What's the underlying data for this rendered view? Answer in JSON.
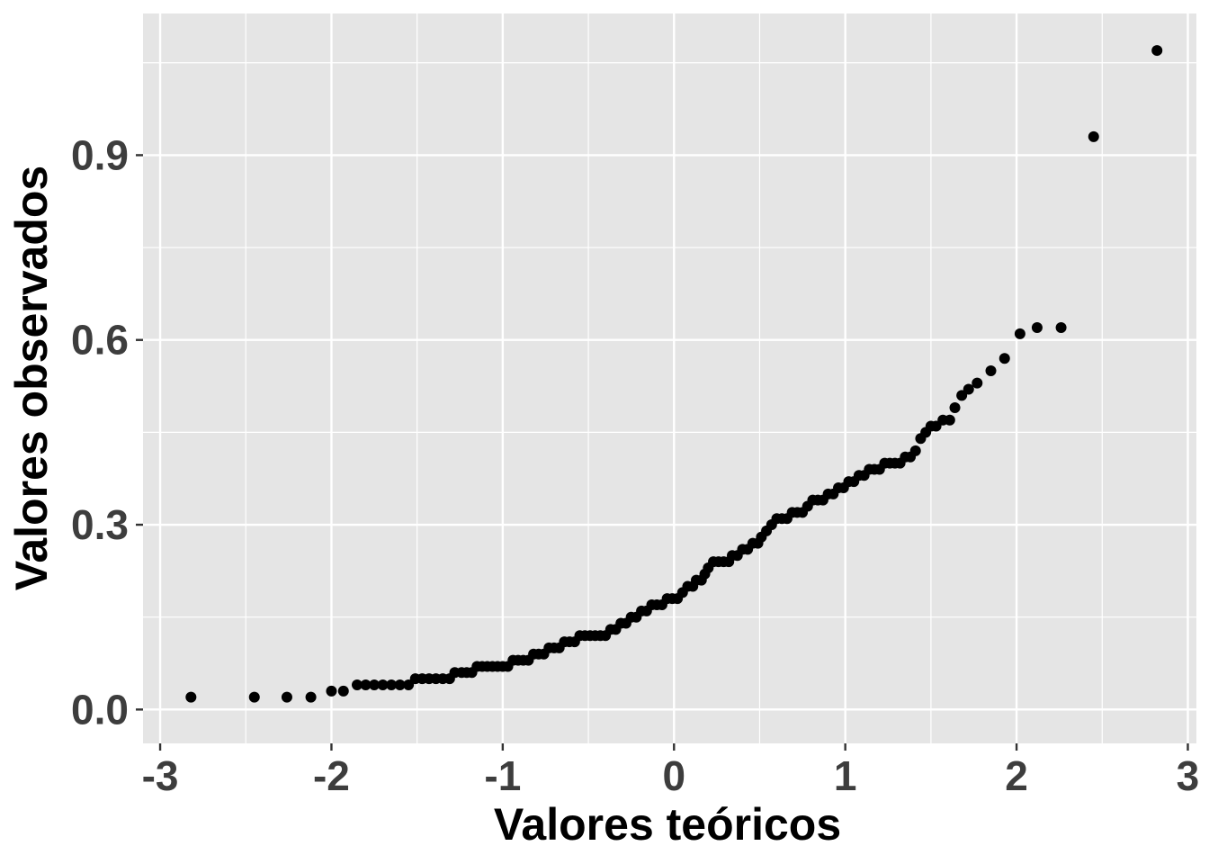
{
  "chart_data": {
    "type": "scatter",
    "title": "",
    "xlabel": "Valores teóricos",
    "ylabel": "Valores observados",
    "xlim": [
      -3.1,
      3.05
    ],
    "ylim": [
      -0.055,
      1.13
    ],
    "x_ticks": [
      -3,
      -2,
      -1,
      0,
      1,
      2,
      3
    ],
    "x_tick_labels": [
      "-3",
      "-2",
      "-1",
      "0",
      "1",
      "2",
      "3"
    ],
    "y_ticks": [
      0.0,
      0.3,
      0.6,
      0.9
    ],
    "y_tick_labels": [
      "0.0",
      "0.3",
      "0.6",
      "0.9"
    ],
    "grid": true,
    "legend": "none",
    "colors": {
      "panel": "#e5e5e5",
      "grid": "#ffffff",
      "points": "#000000",
      "ticks": "#3d3d3d"
    },
    "points": [
      [
        -2.82,
        0.02
      ],
      [
        -2.45,
        0.02
      ],
      [
        -2.26,
        0.02
      ],
      [
        -2.12,
        0.02
      ],
      [
        -2.0,
        0.03
      ],
      [
        -1.93,
        0.03
      ],
      [
        -1.85,
        0.04
      ],
      [
        -1.8,
        0.04
      ],
      [
        -1.75,
        0.04
      ],
      [
        -1.7,
        0.04
      ],
      [
        -1.65,
        0.04
      ],
      [
        -1.6,
        0.04
      ],
      [
        -1.55,
        0.04
      ],
      [
        -1.51,
        0.05
      ],
      [
        -1.47,
        0.05
      ],
      [
        -1.43,
        0.05
      ],
      [
        -1.39,
        0.05
      ],
      [
        -1.35,
        0.05
      ],
      [
        -1.31,
        0.05
      ],
      [
        -1.28,
        0.06
      ],
      [
        -1.24,
        0.06
      ],
      [
        -1.21,
        0.06
      ],
      [
        -1.18,
        0.06
      ],
      [
        -1.15,
        0.07
      ],
      [
        -1.12,
        0.07
      ],
      [
        -1.09,
        0.07
      ],
      [
        -1.06,
        0.07
      ],
      [
        -1.03,
        0.07
      ],
      [
        -1.0,
        0.07
      ],
      [
        -0.97,
        0.07
      ],
      [
        -0.94,
        0.08
      ],
      [
        -0.91,
        0.08
      ],
      [
        -0.88,
        0.08
      ],
      [
        -0.85,
        0.08
      ],
      [
        -0.82,
        0.09
      ],
      [
        -0.79,
        0.09
      ],
      [
        -0.76,
        0.09
      ],
      [
        -0.73,
        0.1
      ],
      [
        -0.7,
        0.1
      ],
      [
        -0.67,
        0.1
      ],
      [
        -0.64,
        0.11
      ],
      [
        -0.61,
        0.11
      ],
      [
        -0.58,
        0.11
      ],
      [
        -0.55,
        0.12
      ],
      [
        -0.52,
        0.12
      ],
      [
        -0.49,
        0.12
      ],
      [
        -0.46,
        0.12
      ],
      [
        -0.43,
        0.12
      ],
      [
        -0.4,
        0.12
      ],
      [
        -0.37,
        0.13
      ],
      [
        -0.34,
        0.13
      ],
      [
        -0.31,
        0.14
      ],
      [
        -0.28,
        0.14
      ],
      [
        -0.25,
        0.15
      ],
      [
        -0.22,
        0.15
      ],
      [
        -0.19,
        0.16
      ],
      [
        -0.16,
        0.16
      ],
      [
        -0.13,
        0.17
      ],
      [
        -0.1,
        0.17
      ],
      [
        -0.07,
        0.17
      ],
      [
        -0.04,
        0.18
      ],
      [
        -0.01,
        0.18
      ],
      [
        0.02,
        0.18
      ],
      [
        0.05,
        0.19
      ],
      [
        0.08,
        0.2
      ],
      [
        0.11,
        0.2
      ],
      [
        0.13,
        0.21
      ],
      [
        0.16,
        0.21
      ],
      [
        0.18,
        0.22
      ],
      [
        0.2,
        0.23
      ],
      [
        0.23,
        0.24
      ],
      [
        0.26,
        0.24
      ],
      [
        0.29,
        0.24
      ],
      [
        0.32,
        0.24
      ],
      [
        0.34,
        0.25
      ],
      [
        0.37,
        0.25
      ],
      [
        0.4,
        0.26
      ],
      [
        0.43,
        0.26
      ],
      [
        0.46,
        0.27
      ],
      [
        0.49,
        0.27
      ],
      [
        0.51,
        0.28
      ],
      [
        0.54,
        0.29
      ],
      [
        0.57,
        0.3
      ],
      [
        0.6,
        0.31
      ],
      [
        0.63,
        0.31
      ],
      [
        0.66,
        0.31
      ],
      [
        0.69,
        0.32
      ],
      [
        0.72,
        0.32
      ],
      [
        0.75,
        0.32
      ],
      [
        0.78,
        0.33
      ],
      [
        0.81,
        0.34
      ],
      [
        0.84,
        0.34
      ],
      [
        0.87,
        0.34
      ],
      [
        0.9,
        0.35
      ],
      [
        0.93,
        0.35
      ],
      [
        0.96,
        0.36
      ],
      [
        0.99,
        0.36
      ],
      [
        1.02,
        0.37
      ],
      [
        1.05,
        0.37
      ],
      [
        1.08,
        0.38
      ],
      [
        1.11,
        0.38
      ],
      [
        1.14,
        0.39
      ],
      [
        1.17,
        0.39
      ],
      [
        1.2,
        0.39
      ],
      [
        1.23,
        0.4
      ],
      [
        1.26,
        0.4
      ],
      [
        1.29,
        0.4
      ],
      [
        1.32,
        0.4
      ],
      [
        1.35,
        0.41
      ],
      [
        1.38,
        0.41
      ],
      [
        1.41,
        0.42
      ],
      [
        1.44,
        0.44
      ],
      [
        1.47,
        0.45
      ],
      [
        1.5,
        0.46
      ],
      [
        1.53,
        0.46
      ],
      [
        1.57,
        0.47
      ],
      [
        1.61,
        0.47
      ],
      [
        1.64,
        0.49
      ],
      [
        1.68,
        0.51
      ],
      [
        1.72,
        0.52
      ],
      [
        1.77,
        0.53
      ],
      [
        1.85,
        0.55
      ],
      [
        1.93,
        0.57
      ],
      [
        2.02,
        0.61
      ],
      [
        2.12,
        0.62
      ],
      [
        2.26,
        0.62
      ],
      [
        2.45,
        0.93
      ],
      [
        2.82,
        1.07
      ]
    ]
  }
}
